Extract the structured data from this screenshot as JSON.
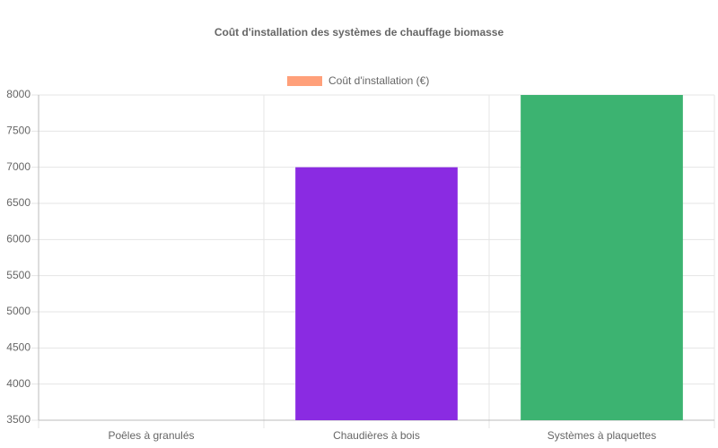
{
  "chart_data": {
    "type": "bar",
    "title": "Coût d'installation des systèmes de chauffage biomasse",
    "categories": [
      "Poêles à granulés",
      "Chaudières à bois",
      "Systèmes à plaquettes"
    ],
    "series": [
      {
        "name": "Coût d'installation (€)",
        "color": "#FFA07A",
        "values": [
          3500,
          7000,
          8000
        ]
      }
    ],
    "colors": [
      "#FFA07A",
      "#8A2BE2",
      "#3CB371"
    ],
    "ylim": [
      3500,
      8000
    ],
    "yticks": [
      3500,
      4000,
      4500,
      5000,
      5500,
      6000,
      6500,
      7000,
      7500,
      8000
    ],
    "grid": true,
    "legend": "top"
  }
}
